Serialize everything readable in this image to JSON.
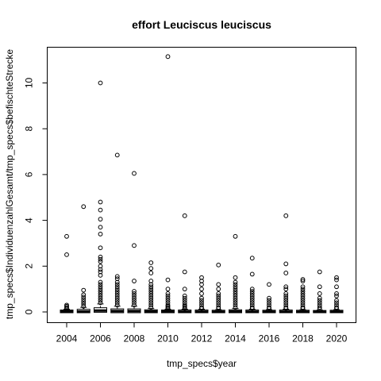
{
  "chart_data": {
    "type": "boxplot",
    "title": "effort Leuciscus leuciscus",
    "xlabel": "tmp_specs$year",
    "ylabel": "tmp_specs$IndividuenzahlGesamt/tmp_specs$befischteStrecke",
    "ylim": [
      0,
      11.3
    ],
    "y_ticks": [
      0,
      2,
      4,
      6,
      8,
      10
    ],
    "x_tick_labels": [
      "2004",
      "2006",
      "2008",
      "2010",
      "2012",
      "2014",
      "2016",
      "2018",
      "2020"
    ],
    "categories": [
      "2004",
      "2005",
      "2006",
      "2007",
      "2008",
      "2009",
      "2010",
      "2011",
      "2012",
      "2013",
      "2014",
      "2015",
      "2016",
      "2017",
      "2018",
      "2019",
      "2020"
    ],
    "grid": false,
    "legend": "none",
    "boxes": [
      {
        "year": "2004",
        "q1": 0.0,
        "median": 0.02,
        "q3": 0.05,
        "whisker_high": 0.12,
        "outliers": [
          0.15,
          0.2,
          0.25,
          0.3,
          2.5,
          3.3
        ]
      },
      {
        "year": "2005",
        "q1": 0.0,
        "median": 0.02,
        "q3": 0.08,
        "whisker_high": 0.2,
        "outliers": [
          0.25,
          0.35,
          0.45,
          0.55,
          0.65,
          0.75,
          0.95,
          4.6
        ]
      },
      {
        "year": "2006",
        "q1": 0.02,
        "median": 0.06,
        "q3": 0.15,
        "whisker_high": 0.35,
        "outliers": [
          0.4,
          0.5,
          0.6,
          0.7,
          0.8,
          0.9,
          1.0,
          1.1,
          1.2,
          1.3,
          1.6,
          1.75,
          1.85,
          2.0,
          2.2,
          2.3,
          2.4,
          2.8,
          3.4,
          3.7,
          4.05,
          4.45,
          4.8,
          10.0
        ]
      },
      {
        "year": "2007",
        "q1": 0.0,
        "median": 0.04,
        "q3": 0.1,
        "whisker_high": 0.25,
        "outliers": [
          0.3,
          0.4,
          0.5,
          0.6,
          0.7,
          0.8,
          0.9,
          1.0,
          1.1,
          1.2,
          1.3,
          1.45,
          1.55,
          6.85
        ]
      },
      {
        "year": "2008",
        "q1": 0.0,
        "median": 0.04,
        "q3": 0.1,
        "whisker_high": 0.25,
        "outliers": [
          0.3,
          0.4,
          0.5,
          0.6,
          0.7,
          0.8,
          0.9,
          1.35,
          2.9,
          6.05
        ]
      },
      {
        "year": "2009",
        "q1": 0.0,
        "median": 0.02,
        "q3": 0.06,
        "whisker_high": 0.15,
        "outliers": [
          0.2,
          0.3,
          0.4,
          0.5,
          0.6,
          0.7,
          0.8,
          0.9,
          1.0,
          1.1,
          1.2,
          1.35,
          1.7,
          1.9,
          2.15
        ]
      },
      {
        "year": "2010",
        "q1": 0.0,
        "median": 0.02,
        "q3": 0.05,
        "whisker_high": 0.12,
        "outliers": [
          0.15,
          0.2,
          0.25,
          0.3,
          0.4,
          0.5,
          0.6,
          0.7,
          0.8,
          1.0,
          1.4,
          11.15
        ]
      },
      {
        "year": "2011",
        "q1": 0.0,
        "median": 0.01,
        "q3": 0.05,
        "whisker_high": 0.12,
        "outliers": [
          0.15,
          0.2,
          0.25,
          0.3,
          0.4,
          0.5,
          0.6,
          0.7,
          1.0,
          1.75,
          4.2
        ]
      },
      {
        "year": "2012",
        "q1": 0.0,
        "median": 0.01,
        "q3": 0.05,
        "whisker_high": 0.12,
        "outliers": [
          0.15,
          0.2,
          0.3,
          0.4,
          0.5,
          0.6,
          0.8,
          1.0,
          1.2,
          1.35,
          1.5
        ]
      },
      {
        "year": "2013",
        "q1": 0.0,
        "median": 0.01,
        "q3": 0.04,
        "whisker_high": 0.1,
        "outliers": [
          0.15,
          0.2,
          0.3,
          0.4,
          0.5,
          0.6,
          0.7,
          0.8,
          1.0,
          1.2,
          2.05
        ]
      },
      {
        "year": "2014",
        "q1": 0.0,
        "median": 0.02,
        "q3": 0.06,
        "whisker_high": 0.15,
        "outliers": [
          0.2,
          0.3,
          0.4,
          0.5,
          0.6,
          0.7,
          0.8,
          0.9,
          1.0,
          1.1,
          1.2,
          1.3,
          1.5,
          3.3
        ]
      },
      {
        "year": "2015",
        "q1": 0.0,
        "median": 0.01,
        "q3": 0.05,
        "whisker_high": 0.12,
        "outliers": [
          0.15,
          0.2,
          0.3,
          0.4,
          0.5,
          0.6,
          0.7,
          0.8,
          0.9,
          1.0,
          1.65,
          2.35
        ]
      },
      {
        "year": "2016",
        "q1": 0.0,
        "median": 0.01,
        "q3": 0.04,
        "whisker_high": 0.1,
        "outliers": [
          0.15,
          0.2,
          0.3,
          0.4,
          0.5,
          0.6,
          1.2
        ]
      },
      {
        "year": "2017",
        "q1": 0.0,
        "median": 0.01,
        "q3": 0.05,
        "whisker_high": 0.12,
        "outliers": [
          0.15,
          0.2,
          0.3,
          0.4,
          0.5,
          0.6,
          0.7,
          0.8,
          1.0,
          1.1,
          1.7,
          2.1,
          4.2
        ]
      },
      {
        "year": "2018",
        "q1": 0.0,
        "median": 0.01,
        "q3": 0.04,
        "whisker_high": 0.1,
        "outliers": [
          0.15,
          0.2,
          0.3,
          0.4,
          0.5,
          0.6,
          0.7,
          0.8,
          0.9,
          1.0,
          1.1,
          1.35,
          1.42
        ]
      },
      {
        "year": "2019",
        "q1": 0.0,
        "median": 0.01,
        "q3": 0.03,
        "whisker_high": 0.08,
        "outliers": [
          0.12,
          0.2,
          0.3,
          0.4,
          0.5,
          0.6,
          0.8,
          1.1,
          1.75
        ]
      },
      {
        "year": "2020",
        "q1": 0.0,
        "median": 0.01,
        "q3": 0.04,
        "whisker_high": 0.1,
        "outliers": [
          0.15,
          0.2,
          0.3,
          0.4,
          0.5,
          0.7,
          0.8,
          1.1,
          1.4,
          1.5
        ]
      }
    ]
  }
}
